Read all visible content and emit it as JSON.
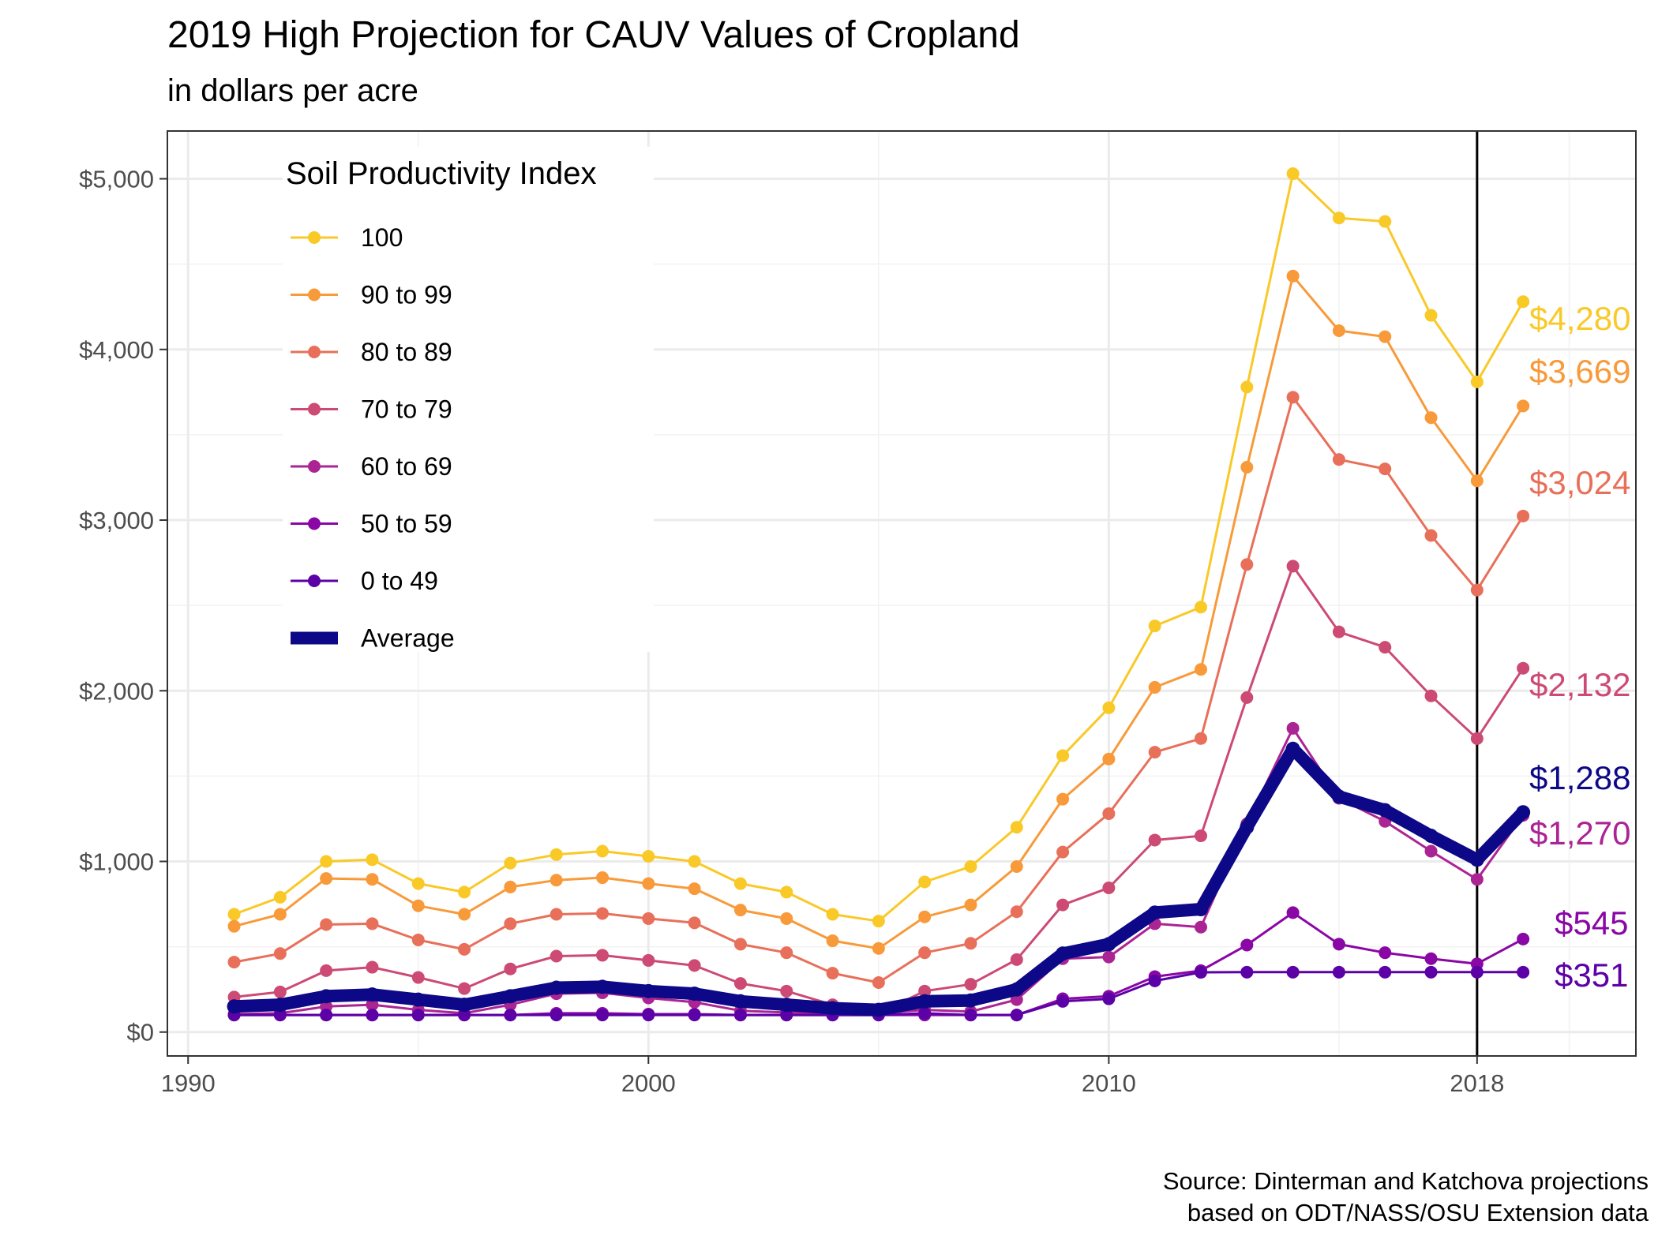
{
  "chart_data": {
    "type": "line",
    "title": "2019 High Projection for CAUV Values of Cropland",
    "subtitle": "in dollars per acre",
    "caption": [
      "Source: Dinterman and Katchova projections",
      "based on ODT/NASS/OSU Extension data"
    ],
    "xlabel": "",
    "ylabel": "",
    "xlim": [
      1989.55,
      2021.45
    ],
    "ylim": [
      -140,
      5280
    ],
    "x_ticks": [
      1990,
      2000,
      2010,
      2018
    ],
    "x_tick_labels": [
      "1990",
      "2000",
      "2010",
      "2018"
    ],
    "y_ticks": [
      0,
      1000,
      2000,
      3000,
      4000,
      5000
    ],
    "y_tick_labels": [
      "$0",
      "$1,000",
      "$2,000",
      "$3,000",
      "$4,000",
      "$5,000"
    ],
    "x_minor_ticks": [
      1995,
      2005,
      2015,
      2020
    ],
    "y_minor_ticks": [
      500,
      1500,
      2500,
      3500,
      4500
    ],
    "grid": true,
    "vline_x": 2018,
    "legend": {
      "title": "Soil Productivity Index",
      "position": "top-left"
    },
    "x": [
      1991,
      1992,
      1993,
      1994,
      1995,
      1996,
      1997,
      1998,
      1999,
      2000,
      2001,
      2002,
      2003,
      2004,
      2005,
      2006,
      2007,
      2008,
      2009,
      2010,
      2011,
      2012,
      2013,
      2014,
      2015,
      2016,
      2017,
      2018,
      2019
    ],
    "series": [
      {
        "name": "100",
        "color": "#F9C928",
        "width": 3,
        "values": [
          690,
          790,
          1000,
          1010,
          870,
          820,
          990,
          1040,
          1060,
          1030,
          1000,
          870,
          820,
          690,
          650,
          880,
          970,
          1200,
          1620,
          1900,
          2380,
          2490,
          3780,
          5030,
          4770,
          4750,
          4200,
          3810,
          4280
        ],
        "end_label": "$4,280"
      },
      {
        "name": "90 to 99",
        "color": "#F89A3A",
        "width": 3,
        "values": [
          620,
          690,
          900,
          895,
          740,
          690,
          850,
          890,
          905,
          870,
          840,
          715,
          665,
          535,
          490,
          675,
          745,
          970,
          1365,
          1600,
          2020,
          2125,
          3310,
          4430,
          4110,
          4075,
          3600,
          3230,
          3669
        ],
        "end_label": "$3,669"
      },
      {
        "name": "80 to 89",
        "color": "#E8705A",
        "width": 3,
        "values": [
          410,
          460,
          630,
          635,
          540,
          485,
          635,
          690,
          695,
          665,
          640,
          515,
          465,
          345,
          290,
          465,
          520,
          705,
          1055,
          1280,
          1640,
          1720,
          2740,
          3720,
          3355,
          3300,
          2910,
          2590,
          3024
        ],
        "end_label": "$3,024"
      },
      {
        "name": "70 to 79",
        "color": "#CC4A74",
        "width": 3,
        "values": [
          205,
          235,
          360,
          380,
          320,
          255,
          370,
          445,
          450,
          420,
          390,
          285,
          240,
          160,
          110,
          240,
          280,
          425,
          745,
          845,
          1125,
          1150,
          1960,
          2730,
          2345,
          2255,
          1970,
          1720,
          2132
        ],
        "end_label": "$2,132"
      },
      {
        "name": "60 to 69",
        "color": "#AB2494",
        "width": 3,
        "values": [
          105,
          110,
          150,
          160,
          130,
          110,
          160,
          225,
          230,
          200,
          175,
          125,
          115,
          110,
          110,
          130,
          120,
          190,
          430,
          440,
          635,
          615,
          1220,
          1780,
          1370,
          1235,
          1060,
          895,
          1270
        ],
        "end_label": "$1,270"
      },
      {
        "name": "50 to 59",
        "color": "#8A07A5",
        "width": 3,
        "values": [
          100,
          100,
          100,
          100,
          100,
          100,
          100,
          110,
          110,
          105,
          105,
          100,
          100,
          100,
          100,
          100,
          100,
          100,
          195,
          210,
          325,
          360,
          510,
          700,
          515,
          465,
          430,
          400,
          545
        ],
        "end_label": "$545"
      },
      {
        "name": "0 to 49",
        "color": "#5C01A6",
        "width": 3,
        "values": [
          100,
          100,
          100,
          100,
          100,
          100,
          100,
          100,
          100,
          100,
          100,
          100,
          100,
          100,
          100,
          110,
          100,
          100,
          180,
          195,
          300,
          350,
          351,
          351,
          351,
          351,
          351,
          351,
          351
        ],
        "end_label": "$351"
      },
      {
        "name": "Average",
        "color": "#0D0887",
        "width": 16,
        "values": [
          150,
          160,
          210,
          220,
          190,
          160,
          210,
          260,
          265,
          240,
          225,
          180,
          160,
          140,
          130,
          180,
          185,
          250,
          460,
          515,
          700,
          720,
          1200,
          1660,
          1380,
          1300,
          1150,
          1010,
          1288
        ],
        "end_label": "$1,288"
      }
    ]
  }
}
